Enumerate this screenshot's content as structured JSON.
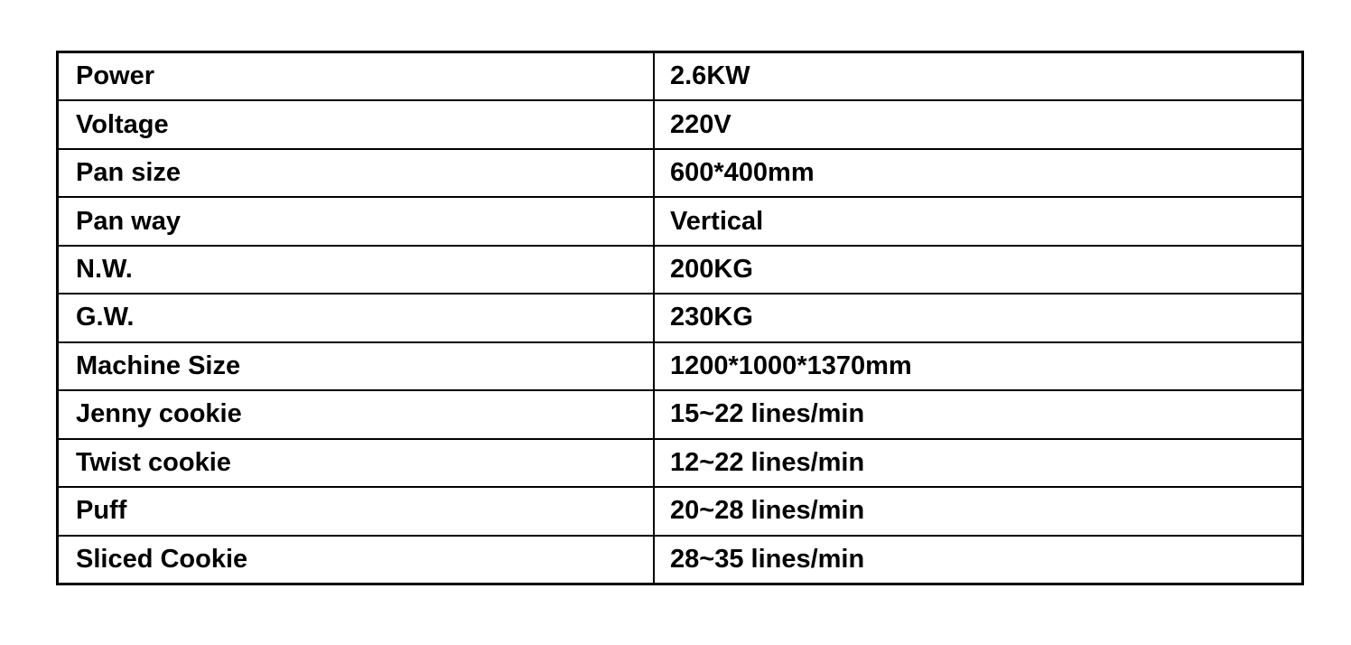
{
  "table": {
    "rows": [
      {
        "label": "Power",
        "value": "2.6KW"
      },
      {
        "label": "Voltage",
        "value": "220V"
      },
      {
        "label": "Pan size",
        "value": "600*400mm"
      },
      {
        "label": "Pan way",
        "value": "Vertical"
      },
      {
        "label": "N.W.",
        "value": "200KG"
      },
      {
        "label": "G.W.",
        "value": "230KG"
      },
      {
        "label": "Machine Size",
        "value": "1200*1000*1370mm"
      },
      {
        "label": "Jenny cookie",
        "value": "15~22 lines/min"
      },
      {
        "label": "Twist cookie",
        "value": "12~22 lines/min"
      },
      {
        "label": "Puff",
        "value": "20~28 lines/min"
      },
      {
        "label": "Sliced Cookie",
        "value": "28~35 lines/min"
      }
    ]
  },
  "colors": {
    "border": "#000000",
    "text": "#000000",
    "background": "#ffffff"
  }
}
